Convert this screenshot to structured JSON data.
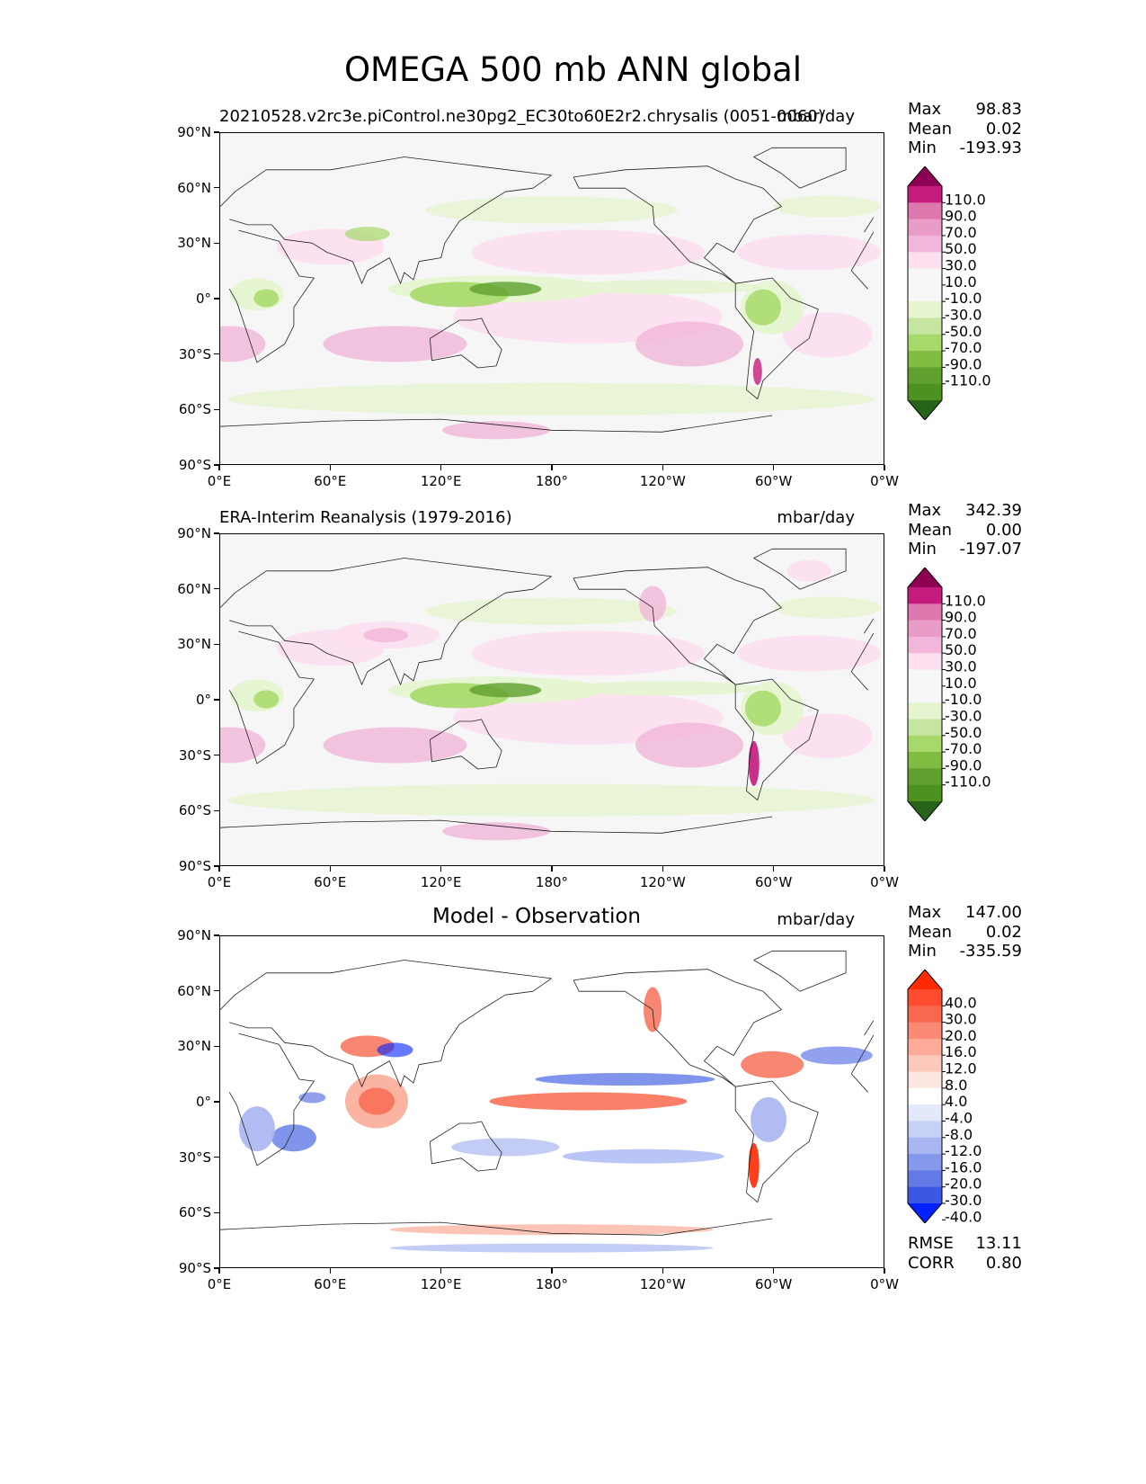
{
  "figure": {
    "title": "OMEGA 500 mb ANN global"
  },
  "panels": [
    {
      "left_title": "20210528.v2rc3e.piControl.ne30pg2_EC30to60E2r2.chrysalis (0051-0060)",
      "center_title": "",
      "units": "mbar/day",
      "stats": [
        {
          "label": "Max",
          "value": "98.83"
        },
        {
          "label": "Mean",
          "value": "0.02"
        },
        {
          "label": "Min",
          "value": "-193.93"
        }
      ],
      "colorbar": {
        "labels": [
          "110.0",
          "90.0",
          "70.0",
          "50.0",
          "30.0",
          "10.0",
          "-10.0",
          "-30.0",
          "-50.0",
          "-70.0",
          "-90.0",
          "-110.0"
        ],
        "top_arrow_color": "#8e0152",
        "bottom_arrow_color": "#276419",
        "colors": [
          "#8e0152",
          "#c51b7d",
          "#de77ae",
          "#e99cc6",
          "#f1b6da",
          "#fde0ef",
          "#f7f7f7",
          "#f7f7f7",
          "#e6f5d0",
          "#c5e5a0",
          "#a6d96a",
          "#7fbc41",
          "#5fa02e",
          "#4d9221",
          "#276419"
        ]
      }
    },
    {
      "left_title": "ERA-Interim Reanalysis (1979-2016)",
      "center_title": "",
      "units": "mbar/day",
      "stats": [
        {
          "label": "Max",
          "value": "342.39"
        },
        {
          "label": "Mean",
          "value": "0.00"
        },
        {
          "label": "Min",
          "value": "-197.07"
        }
      ],
      "colorbar": {
        "labels": [
          "110.0",
          "90.0",
          "70.0",
          "50.0",
          "30.0",
          "10.0",
          "-10.0",
          "-30.0",
          "-50.0",
          "-70.0",
          "-90.0",
          "-110.0"
        ],
        "top_arrow_color": "#8e0152",
        "bottom_arrow_color": "#276419",
        "colors": [
          "#8e0152",
          "#c51b7d",
          "#de77ae",
          "#e99cc6",
          "#f1b6da",
          "#fde0ef",
          "#f7f7f7",
          "#f7f7f7",
          "#e6f5d0",
          "#c5e5a0",
          "#a6d96a",
          "#7fbc41",
          "#5fa02e",
          "#4d9221",
          "#276419"
        ]
      }
    },
    {
      "left_title": "",
      "center_title": "Model - Observation",
      "units": "mbar/day",
      "stats": [
        {
          "label": "Max",
          "value": "147.00"
        },
        {
          "label": "Mean",
          "value": "0.02"
        },
        {
          "label": "Min",
          "value": "-335.59"
        }
      ],
      "extra_stats": [
        {
          "label": "RMSE",
          "value": "13.11"
        },
        {
          "label": "CORR",
          "value": "0.80"
        }
      ],
      "colorbar": {
        "labels": [
          "40.0",
          "30.0",
          "20.0",
          "16.0",
          "12.0",
          "8.0",
          "4.0",
          "-4.0",
          "-8.0",
          "-12.0",
          "-16.0",
          "-20.0",
          "-30.0",
          "-40.0"
        ],
        "top_arrow_color": "#ff2a00",
        "bottom_arrow_color": "#0022ff",
        "colors": [
          "#ff2a00",
          "#ff4b2f",
          "#f8684e",
          "#fa8a73",
          "#fbab98",
          "#fcc9bc",
          "#fde6df",
          "#ffffff",
          "#e3e8fb",
          "#c7d0f7",
          "#a8b6f1",
          "#8698ec",
          "#6279e6",
          "#3c57e3",
          "#0022ff"
        ]
      }
    }
  ],
  "axes": {
    "y_ticks": [
      "90°N",
      "60°N",
      "30°N",
      "0°",
      "30°S",
      "60°S",
      "90°S"
    ],
    "x_ticks": [
      "0°E",
      "60°E",
      "120°E",
      "180°",
      "120°W",
      "60°W",
      "0°W"
    ]
  },
  "chart_data": [
    {
      "type": "heatmap",
      "title": "20210528.v2rc3e.piControl.ne30pg2_EC30to60E2r2.chrysalis (0051-0060)",
      "variable": "OMEGA 500 mb ANN",
      "units": "mbar/day",
      "xlim": [
        0,
        360
      ],
      "ylim": [
        -90,
        90
      ],
      "x_ticks": [
        "0°E",
        "60°E",
        "120°E",
        "180°",
        "120°W",
        "60°W",
        "0°W"
      ],
      "y_ticks": [
        "90°N",
        "60°N",
        "30°N",
        "0°",
        "30°S",
        "60°S",
        "90°S"
      ],
      "contour_levels": [
        -110,
        -90,
        -70,
        -50,
        -30,
        -10,
        10,
        30,
        50,
        70,
        90,
        110
      ],
      "stats": {
        "max": 98.83,
        "mean": 0.02,
        "min": -193.93
      }
    },
    {
      "type": "heatmap",
      "title": "ERA-Interim Reanalysis (1979-2016)",
      "variable": "OMEGA 500 mb ANN",
      "units": "mbar/day",
      "xlim": [
        0,
        360
      ],
      "ylim": [
        -90,
        90
      ],
      "x_ticks": [
        "0°E",
        "60°E",
        "120°E",
        "180°",
        "120°W",
        "60°W",
        "0°W"
      ],
      "y_ticks": [
        "90°N",
        "60°N",
        "30°N",
        "0°",
        "30°S",
        "60°S",
        "90°S"
      ],
      "contour_levels": [
        -110,
        -90,
        -70,
        -50,
        -30,
        -10,
        10,
        30,
        50,
        70,
        90,
        110
      ],
      "stats": {
        "max": 342.39,
        "mean": 0.0,
        "min": -197.07
      }
    },
    {
      "type": "heatmap",
      "title": "Model - Observation",
      "variable": "OMEGA 500 mb ANN",
      "units": "mbar/day",
      "xlim": [
        0,
        360
      ],
      "ylim": [
        -90,
        90
      ],
      "x_ticks": [
        "0°E",
        "60°E",
        "120°E",
        "180°",
        "120°W",
        "60°W",
        "0°W"
      ],
      "y_ticks": [
        "90°N",
        "60°N",
        "30°N",
        "0°",
        "30°S",
        "60°S",
        "90°S"
      ],
      "contour_levels": [
        -40,
        -30,
        -20,
        -16,
        -12,
        -8,
        -4,
        4,
        8,
        12,
        16,
        20,
        30,
        40
      ],
      "stats": {
        "max": 147.0,
        "mean": 0.02,
        "min": -335.59,
        "rmse": 13.11,
        "corr": 0.8
      }
    }
  ]
}
